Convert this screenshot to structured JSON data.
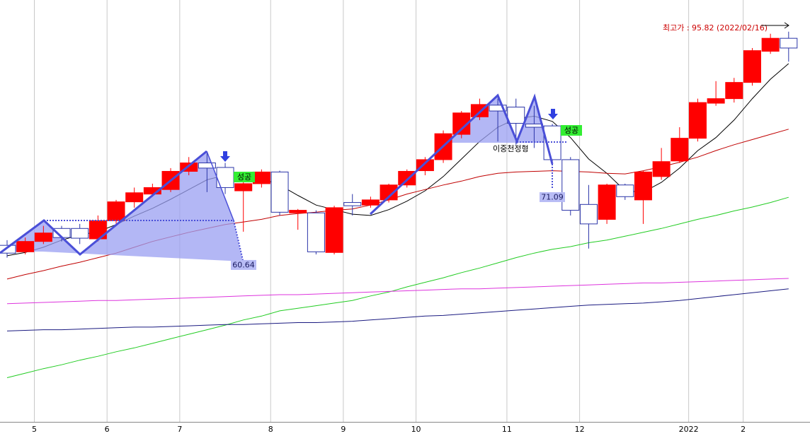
{
  "chart_data": {
    "type": "candlestick",
    "categories": [
      null,
      null,
      "5",
      null,
      null,
      null,
      "6",
      null,
      null,
      null,
      "7",
      null,
      null,
      null,
      null,
      "8",
      null,
      null,
      null,
      "9",
      null,
      null,
      null,
      "10",
      null,
      null,
      null,
      null,
      "11",
      null,
      null,
      null,
      "12",
      null,
      null,
      null,
      null,
      null,
      "2022",
      null,
      null,
      "2",
      null,
      null
    ],
    "open": [
      62.9,
      61.9,
      63.5,
      65.5,
      65.5,
      63.9,
      66.7,
      69.6,
      70.8,
      71.5,
      74.3,
      75.6,
      74.9,
      71.3,
      72.4,
      74.2,
      67.9,
      67.9,
      61.8,
      69.5,
      69.1,
      69.9,
      72.2,
      74.4,
      76.1,
      80.0,
      82.7,
      84.5,
      84.2,
      81.6,
      81.3,
      76.1,
      69.2,
      66.9,
      72.2,
      69.9,
      73.5,
      75.9,
      79.4,
      84.8,
      85.5,
      88.0,
      92.8,
      94.8
    ],
    "high": [
      63.7,
      64.1,
      65.9,
      65.9,
      66.2,
      67.5,
      69.9,
      71.8,
      72.4,
      74.8,
      76.5,
      77.4,
      75.6,
      73.7,
      74.6,
      74.4,
      68.5,
      68.3,
      69.0,
      70.8,
      70.4,
      72.4,
      74.6,
      76.5,
      80.6,
      83.6,
      85.5,
      85.5,
      85.5,
      84.4,
      81.6,
      76.5,
      72.2,
      72.4,
      72.4,
      74.4,
      77.9,
      81.1,
      85.5,
      88.2,
      88.7,
      93.3,
      95.5,
      95.82
    ],
    "low": [
      61.0,
      61.5,
      63.1,
      63.5,
      63.1,
      63.5,
      66.2,
      68.7,
      70.4,
      71.1,
      73.7,
      71.1,
      70.8,
      65.0,
      71.8,
      67.5,
      65.3,
      61.5,
      61.5,
      67.5,
      68.7,
      69.5,
      71.8,
      73.7,
      75.6,
      79.4,
      82.2,
      78.9,
      78.4,
      77.9,
      75.8,
      67.5,
      62.4,
      66.2,
      69.9,
      66.2,
      73.0,
      75.6,
      78.9,
      84.4,
      84.9,
      87.5,
      92.4,
      91.2
    ],
    "close": [
      61.7,
      63.5,
      64.8,
      64.1,
      64.0,
      66.7,
      69.6,
      71.0,
      71.8,
      74.3,
      75.6,
      74.8,
      71.8,
      72.4,
      74.2,
      68.0,
      68.3,
      61.9,
      68.7,
      69.0,
      69.9,
      72.2,
      74.3,
      76.1,
      80.1,
      83.3,
      84.6,
      83.6,
      81.7,
      81.1,
      76.1,
      68.3,
      66.2,
      72.2,
      70.4,
      74.2,
      75.8,
      79.4,
      84.9,
      85.5,
      88.0,
      92.9,
      94.8,
      93.3
    ],
    "up_color": "#ff0000",
    "down_color": "#2b35a8",
    "lines": [
      {
        "color": "#000000",
        "values": [
          61.3,
          61.8,
          62.6,
          63.7,
          64.5,
          65.0,
          66.1,
          67.4,
          68.6,
          70.0,
          71.5,
          73.0,
          73.7,
          73.6,
          73.2,
          72.2,
          70.6,
          69.1,
          68.4,
          67.7,
          67.5,
          68.4,
          69.7,
          71.3,
          73.5,
          76.2,
          78.9,
          81.1,
          82.4,
          82.8,
          82.0,
          79.5,
          76.2,
          74.0,
          71.3,
          71.1,
          72.6,
          74.8,
          77.5,
          79.5,
          82.2,
          85.5,
          88.5,
          90.9
        ]
      },
      {
        "color": "#c00000",
        "values": [
          57.7,
          58.4,
          59.0,
          59.7,
          60.3,
          61.0,
          61.7,
          62.6,
          63.5,
          64.2,
          64.9,
          65.5,
          66.1,
          66.5,
          66.9,
          67.5,
          67.8,
          68.0,
          68.3,
          68.5,
          69.1,
          69.9,
          70.8,
          71.5,
          72.2,
          72.8,
          73.5,
          74.0,
          74.2,
          74.3,
          74.4,
          74.3,
          74.2,
          74.0,
          73.9,
          74.4,
          75.0,
          75.7,
          76.5,
          77.5,
          78.4,
          79.2,
          80.0,
          80.8
        ]
      },
      {
        "color": "#22cc22",
        "values": [
          42.5,
          43.2,
          43.9,
          44.5,
          45.2,
          45.8,
          46.5,
          47.1,
          47.8,
          48.5,
          49.2,
          49.9,
          50.6,
          51.4,
          52.0,
          52.8,
          53.2,
          53.6,
          54.0,
          54.4,
          55.1,
          55.7,
          56.5,
          57.2,
          57.9,
          58.7,
          59.4,
          60.2,
          61.0,
          61.7,
          62.3,
          62.7,
          63.3,
          63.7,
          64.3,
          64.9,
          65.5,
          66.2,
          66.9,
          67.5,
          68.2,
          68.8,
          69.5,
          70.3
        ]
      },
      {
        "color": "#dd33dd",
        "values": [
          53.9,
          54.0,
          54.1,
          54.2,
          54.3,
          54.4,
          54.4,
          54.5,
          54.6,
          54.7,
          54.8,
          54.9,
          55.0,
          55.1,
          55.2,
          55.3,
          55.3,
          55.4,
          55.5,
          55.6,
          55.7,
          55.8,
          55.9,
          56.0,
          56.1,
          56.2,
          56.2,
          56.3,
          56.4,
          56.5,
          56.6,
          56.7,
          56.8,
          56.9,
          57.0,
          57.1,
          57.1,
          57.2,
          57.3,
          57.4,
          57.5,
          57.6,
          57.7,
          57.8
        ]
      },
      {
        "color": "#1a1a80",
        "values": [
          49.7,
          49.8,
          49.9,
          49.9,
          50.0,
          50.1,
          50.2,
          50.3,
          50.3,
          50.4,
          50.5,
          50.6,
          50.7,
          50.7,
          50.8,
          50.9,
          51.0,
          51.0,
          51.1,
          51.2,
          51.4,
          51.6,
          51.8,
          52.0,
          52.1,
          52.3,
          52.5,
          52.7,
          52.9,
          53.1,
          53.3,
          53.5,
          53.7,
          53.8,
          53.9,
          54.0,
          54.2,
          54.4,
          54.7,
          55.0,
          55.3,
          55.6,
          55.9,
          56.2
        ]
      }
    ],
    "ylim": [
      35.7,
      100.7
    ],
    "grid": true,
    "annotations": [
      "최고가 : 95.82 (2022/02/16)",
      "성공",
      "성공",
      "이중천정형"
    ],
    "targets": [
      60.64,
      71.09
    ]
  }
}
